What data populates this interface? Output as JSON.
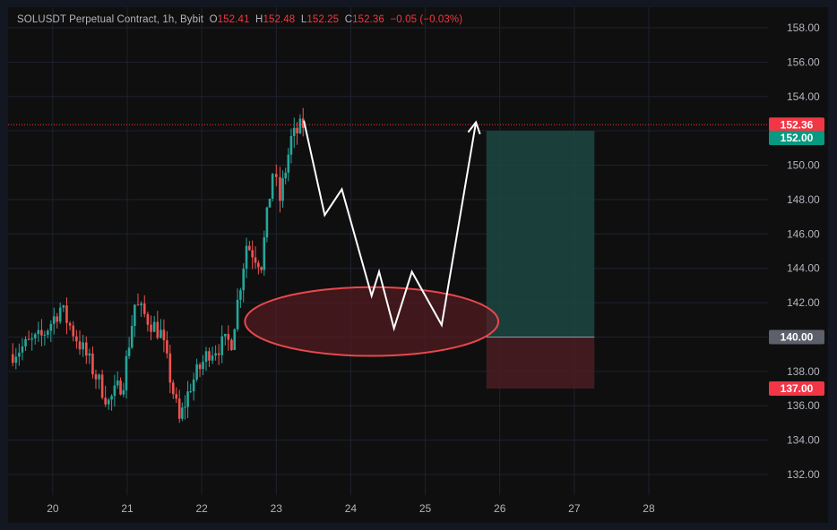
{
  "header": {
    "symbol": "SOLUSDT Perpetual Contract, 1h, Bybit",
    "open_label": "O",
    "open_value": "152.41",
    "high_label": "H",
    "high_value": "152.48",
    "low_label": "L",
    "low_value": "152.25",
    "close_label": "C",
    "close_value": "152.36",
    "change": "−0.05 (−0.03%)"
  },
  "colors": {
    "background": "#0f0f0f",
    "grid": "#1f2230",
    "up": "#26a69a",
    "down": "#ef5350",
    "accent_red": "#f23645",
    "profit_zone": "#1d4a44",
    "loss_zone": "#4a1c22",
    "stop_tag": "#f23645",
    "target_tag": "#089981",
    "entry_tag": "#5d606b",
    "annotation": "#ffffff",
    "ellipse_stroke": "#e8484e",
    "ellipse_fill": "#5a1c22"
  },
  "chart_data": {
    "type": "candlestick",
    "title": "SOLUSDT Perpetual Contract, 1h, Bybit",
    "ylim": [
      130.8,
      159.2
    ],
    "xlim": [
      19.4,
      29.6
    ],
    "y_ticks": [
      "132.00",
      "134.00",
      "136.00",
      "138.00",
      "140.00",
      "142.00",
      "144.00",
      "146.00",
      "148.00",
      "150.00",
      "152.00",
      "154.00",
      "156.00",
      "158.00"
    ],
    "x_ticks": [
      "20",
      "21",
      "22",
      "23",
      "24",
      "25",
      "26",
      "27",
      "28"
    ],
    "grid": true,
    "last_price": "152.36",
    "position": {
      "entry": "140.00",
      "target": "152.00",
      "stop": "137.00",
      "x_start": 25.82,
      "x_end": 27.27
    },
    "path_projection": [
      [
        23.37,
        152.6
      ],
      [
        23.65,
        147.1
      ],
      [
        23.88,
        148.6
      ],
      [
        24.28,
        142.4
      ],
      [
        24.38,
        143.8
      ],
      [
        24.58,
        140.5
      ],
      [
        24.82,
        143.8
      ],
      [
        25.22,
        140.7
      ],
      [
        25.68,
        152.5
      ]
    ],
    "zone_ellipse": {
      "cx": 24.28,
      "cy": 140.9,
      "rx": 1.7,
      "ry": 2.0
    },
    "key_points": [
      {
        "x": 19.42,
        "y": 139.0
      },
      {
        "x": 19.85,
        "y": 140.0
      },
      {
        "x": 20.1,
        "y": 141.7
      },
      {
        "x": 20.45,
        "y": 138.9
      },
      {
        "x": 20.75,
        "y": 136.2
      },
      {
        "x": 20.95,
        "y": 137.5
      },
      {
        "x": 21.1,
        "y": 141.9
      },
      {
        "x": 21.45,
        "y": 140.2
      },
      {
        "x": 21.7,
        "y": 135.1
      },
      {
        "x": 21.85,
        "y": 137.2
      },
      {
        "x": 22.1,
        "y": 139.2
      },
      {
        "x": 22.4,
        "y": 139.8
      },
      {
        "x": 22.6,
        "y": 145.4
      },
      {
        "x": 22.8,
        "y": 144.3
      },
      {
        "x": 22.95,
        "y": 149.6
      },
      {
        "x": 23.05,
        "y": 148.0
      },
      {
        "x": 23.2,
        "y": 151.5
      },
      {
        "x": 23.36,
        "y": 152.36
      }
    ]
  }
}
